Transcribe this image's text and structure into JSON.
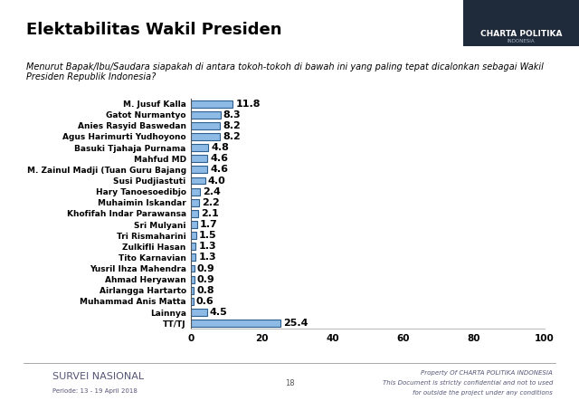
{
  "chart_data": {
    "type": "bar",
    "orientation": "horizontal",
    "title": "Elektabilitas Wakil Presiden",
    "subtitle": "Menurut Bapak/Ibu/Saudara siapakah di antara tokoh-tokoh di bawah ini yang paling tepat dicalonkan sebagai Wakil Presiden Republik Indonesia?",
    "categories": [
      "M. Jusuf Kalla",
      "Gatot Nurmantyo",
      "Anies Rasyid Baswedan",
      "Agus Harimurti Yudhoyono",
      "Basuki Tjahaja Purnama",
      "Mahfud MD",
      "M. Zainul Madji (Tuan Guru Bajang",
      "Susi Pudjiastuti",
      "Hary Tanoesoedibjo",
      "Muhaimin Iskandar",
      "Khofifah Indar Parawansa",
      "Sri Mulyani",
      "Tri Rismaharini",
      "Zulkifli Hasan",
      "Tito Karnavian",
      "Yusril Ihza Mahendra",
      "Ahmad Heryawan",
      "Airlangga Hartarto",
      "Muhammad Anis Matta",
      "Lainnya",
      "TT/TJ"
    ],
    "values": [
      11.8,
      8.3,
      8.2,
      8.2,
      4.8,
      4.6,
      4.6,
      4.0,
      2.4,
      2.2,
      2.1,
      1.7,
      1.5,
      1.3,
      1.3,
      0.9,
      0.9,
      0.8,
      0.6,
      4.5,
      25.4
    ],
    "value_labels": [
      "11.8",
      "8.3",
      "8.2",
      "8.2",
      "4.8",
      "4.6",
      "4.6",
      "4.0",
      "2.4",
      "2.2",
      "2.1",
      "1.7",
      "1.5",
      "1.3",
      "1.3",
      "0.9",
      "0.9",
      "0.8",
      "0.6",
      "4.5",
      "25.4"
    ],
    "color": "#8dbbe6",
    "xlim": [
      0,
      100
    ],
    "xticks": [
      0,
      20,
      40,
      60,
      80,
      100
    ],
    "grid": false,
    "data_labels": true
  },
  "logo": [
    "CHARTA POLITIKA",
    "INDONESIA"
  ],
  "footer": {
    "survey": "SURVEI NASIONAL",
    "period": "Periode: 13 - 19 April 2018",
    "page": "18",
    "notice": [
      "Property Of CHARTA POLITIKA INDONESIA",
      "This Document is strictly confidential and not to used",
      "for outside the project under any conditions"
    ]
  }
}
